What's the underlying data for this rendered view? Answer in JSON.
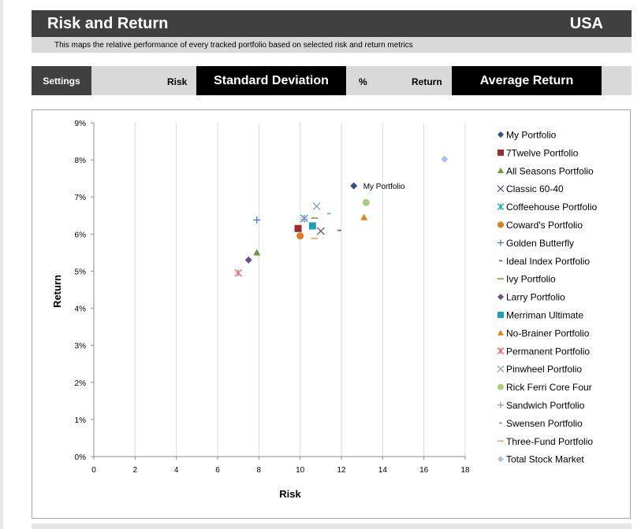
{
  "header": {
    "title": "Risk and Return",
    "country": "USA"
  },
  "subtitle": "This maps the relative performance of every tracked portfolio based on selected risk and return metrics",
  "settings": {
    "button_label": "Settings",
    "risk_label": "Risk",
    "risk_value": "Standard Deviation",
    "unit_label": "%",
    "return_label": "Return",
    "return_value": "Average Return"
  },
  "chart_data": {
    "type": "scatter",
    "title": "",
    "xlabel": "Risk",
    "ylabel": "Return",
    "xlim": [
      0,
      18
    ],
    "ylim": [
      0,
      9
    ],
    "x_ticks": [
      0,
      2,
      4,
      6,
      8,
      10,
      12,
      14,
      16,
      18
    ],
    "y_ticks": [
      "0%",
      "1%",
      "2%",
      "3%",
      "4%",
      "5%",
      "6%",
      "7%",
      "8%",
      "9%"
    ],
    "grid": "vertical",
    "legend_position": "right",
    "annotation": "My Portfolio",
    "series": [
      {
        "name": "My Portfolio",
        "marker": "diamond",
        "color": "#2f4f8f",
        "x": 12.6,
        "y": 7.3
      },
      {
        "name": "7Twelve Portfolio",
        "marker": "square",
        "color": "#9b2d2d",
        "x": 9.9,
        "y": 6.15
      },
      {
        "name": "All Seasons Portfolio",
        "marker": "triangle",
        "color": "#6b9a3a",
        "x": 7.9,
        "y": 5.5
      },
      {
        "name": "Classic 60-40",
        "marker": "x",
        "color": "#6b4c8a",
        "x": 11.0,
        "y": 6.08
      },
      {
        "name": "Coffeehouse Portfolio",
        "marker": "star",
        "color": "#1f9fb4",
        "x": 10.2,
        "y": 6.42
      },
      {
        "name": "Coward's Portfolio",
        "marker": "circle",
        "color": "#e07b20",
        "x": 10.0,
        "y": 5.95
      },
      {
        "name": "Golden Butterfly",
        "marker": "plus",
        "color": "#4a79c4",
        "x": 7.9,
        "y": 6.38
      },
      {
        "name": "Ideal Index Portfolio",
        "marker": "dash",
        "color": "#b03a3a",
        "x": 11.9,
        "y": 6.1
      },
      {
        "name": "Ivy Portfolio",
        "marker": "longdash",
        "color": "#7aa23a",
        "x": 10.7,
        "y": 6.43
      },
      {
        "name": "Larry Portfolio",
        "marker": "diamond",
        "color": "#6b4c8a",
        "x": 7.5,
        "y": 5.3
      },
      {
        "name": "Merriman Ultimate",
        "marker": "square",
        "color": "#1fa0b4",
        "x": 10.6,
        "y": 6.22
      },
      {
        "name": "No-Brainer Portfolio",
        "marker": "triangle",
        "color": "#e8821e",
        "x": 13.1,
        "y": 6.45
      },
      {
        "name": "Permanent Portfolio",
        "marker": "star",
        "color": "#e06666",
        "x": 7.0,
        "y": 4.95
      },
      {
        "name": "Pinwheel Portfolio",
        "marker": "x",
        "color": "#7f9fd4",
        "x": 10.8,
        "y": 6.75
      },
      {
        "name": "Rick Ferri Core Four",
        "marker": "circle",
        "color": "#a5cf7a",
        "x": 13.2,
        "y": 6.85
      },
      {
        "name": "Sandwich Portfolio",
        "marker": "plus",
        "color": "#a28ac0",
        "x": 10.2,
        "y": 6.4
      },
      {
        "name": "Swensen Portfolio",
        "marker": "dash",
        "color": "#3fb0c8",
        "x": 11.4,
        "y": 6.55
      },
      {
        "name": "Three-Fund Portfolio",
        "marker": "longdash",
        "color": "#f0a060",
        "x": 10.7,
        "y": 5.88
      },
      {
        "name": "Total Stock Market",
        "marker": "diamond",
        "color": "#a9bfe3",
        "x": 17.0,
        "y": 8.02
      }
    ]
  }
}
